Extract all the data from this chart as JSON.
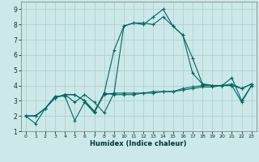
{
  "xlabel": "Humidex (Indice chaleur)",
  "bg_color": "#cce8e8",
  "grid_color": "#aacccc",
  "line_color": "#006666",
  "series": [
    [
      2.0,
      1.5,
      2.5,
      3.3,
      3.3,
      1.7,
      2.9,
      2.2,
      3.5,
      6.3,
      7.9,
      8.1,
      8.0,
      8.5,
      9.0,
      7.9,
      7.3,
      5.8,
      4.1,
      4.0,
      4.0,
      4.0,
      3.8,
      4.1
    ],
    [
      2.0,
      2.0,
      2.5,
      3.2,
      3.4,
      3.4,
      3.0,
      2.3,
      3.4,
      3.5,
      3.5,
      3.5,
      3.5,
      3.5,
      3.6,
      3.6,
      3.7,
      3.8,
      3.9,
      3.9,
      4.0,
      4.0,
      2.9,
      4.0
    ],
    [
      2.0,
      2.0,
      2.5,
      3.2,
      3.4,
      3.4,
      3.0,
      2.3,
      3.5,
      3.4,
      3.4,
      3.4,
      3.5,
      3.6,
      3.6,
      3.6,
      3.8,
      3.9,
      4.0,
      4.0,
      4.0,
      4.1,
      3.8,
      4.1
    ],
    [
      2.0,
      2.0,
      2.5,
      3.2,
      3.4,
      2.9,
      3.4,
      2.9,
      2.2,
      3.5,
      7.9,
      8.1,
      8.1,
      8.0,
      8.5,
      7.9,
      7.3,
      4.8,
      4.1,
      4.0,
      4.0,
      4.5,
      3.0,
      4.0
    ]
  ],
  "x": [
    0,
    1,
    2,
    3,
    4,
    5,
    6,
    7,
    8,
    9,
    10,
    11,
    12,
    13,
    14,
    15,
    16,
    17,
    18,
    19,
    20,
    21,
    22,
    23
  ],
  "xlim": [
    -0.5,
    23.5
  ],
  "ylim": [
    1.0,
    9.5
  ],
  "yticks": [
    1,
    2,
    3,
    4,
    5,
    6,
    7,
    8,
    9
  ],
  "xtick_labels": [
    "0",
    "1",
    "2",
    "3",
    "4",
    "5",
    "6",
    "7",
    "8",
    "9",
    "10",
    "11",
    "12",
    "13",
    "14",
    "15",
    "16",
    "17",
    "18",
    "19",
    "20",
    "21",
    "22",
    "23"
  ]
}
